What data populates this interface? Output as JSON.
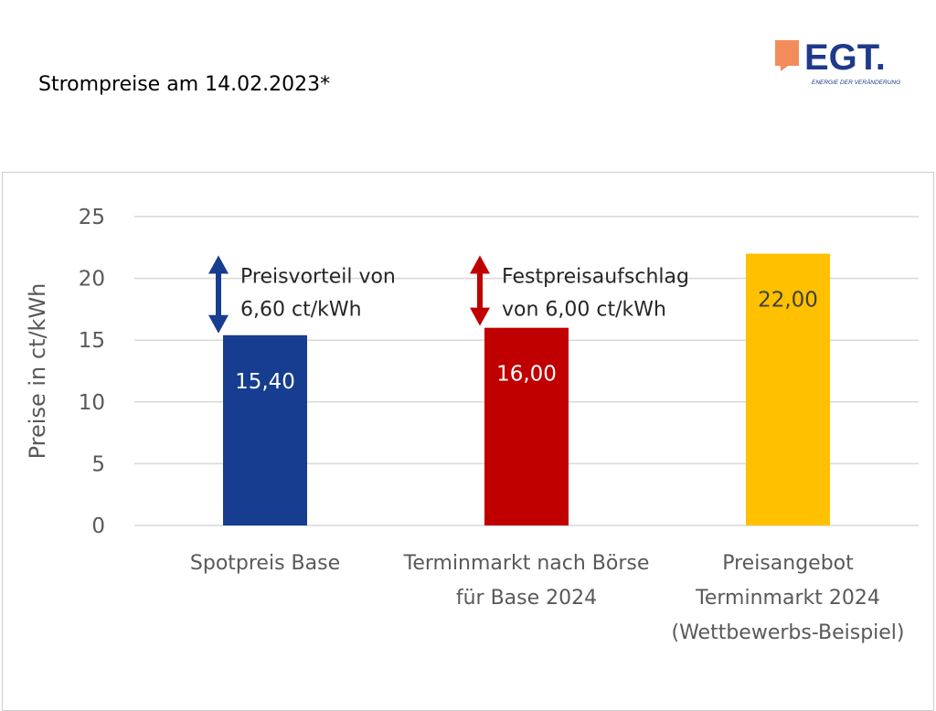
{
  "page": {
    "title": "Strompreise am 14.02.2023*"
  },
  "logo": {
    "brand": "EGT.",
    "tagline": "ENERGIE DER VERÄNDERUNG",
    "brand_color": "#1f3a8a",
    "accent_color": "#f28c5a"
  },
  "chart_data": {
    "type": "bar",
    "title": "",
    "xlabel": "",
    "ylabel": "Preise in ct/kWh",
    "ylim": [
      0,
      25
    ],
    "yticks": [
      0,
      5,
      10,
      15,
      20,
      25
    ],
    "grid": true,
    "categories": [
      [
        "Spotpreis Base"
      ],
      [
        "Terminmarkt nach Börse",
        "für Base 2024"
      ],
      [
        "Preisangebot",
        "Terminmarkt 2024",
        "(Wettbewerbs-Beispiel)"
      ]
    ],
    "values": [
      15.4,
      16.0,
      22.0
    ],
    "value_labels": [
      "15,40",
      "16,00",
      "22,00"
    ],
    "colors": [
      "#163d8f",
      "#c00000",
      "#ffc000"
    ],
    "annotations": [
      {
        "lines": [
          "Preisvorteil von",
          "6,60 ct/kWh"
        ],
        "arrow_color": "#163d8f",
        "arrow_from": 22.0,
        "arrow_to": 15.4,
        "bar_index": 0
      },
      {
        "lines": [
          "Festpreisaufschlag",
          "von 6,00 ct/kWh"
        ],
        "arrow_color": "#c00000",
        "arrow_from": 22.0,
        "arrow_to": 16.0,
        "bar_index": 1
      }
    ]
  }
}
